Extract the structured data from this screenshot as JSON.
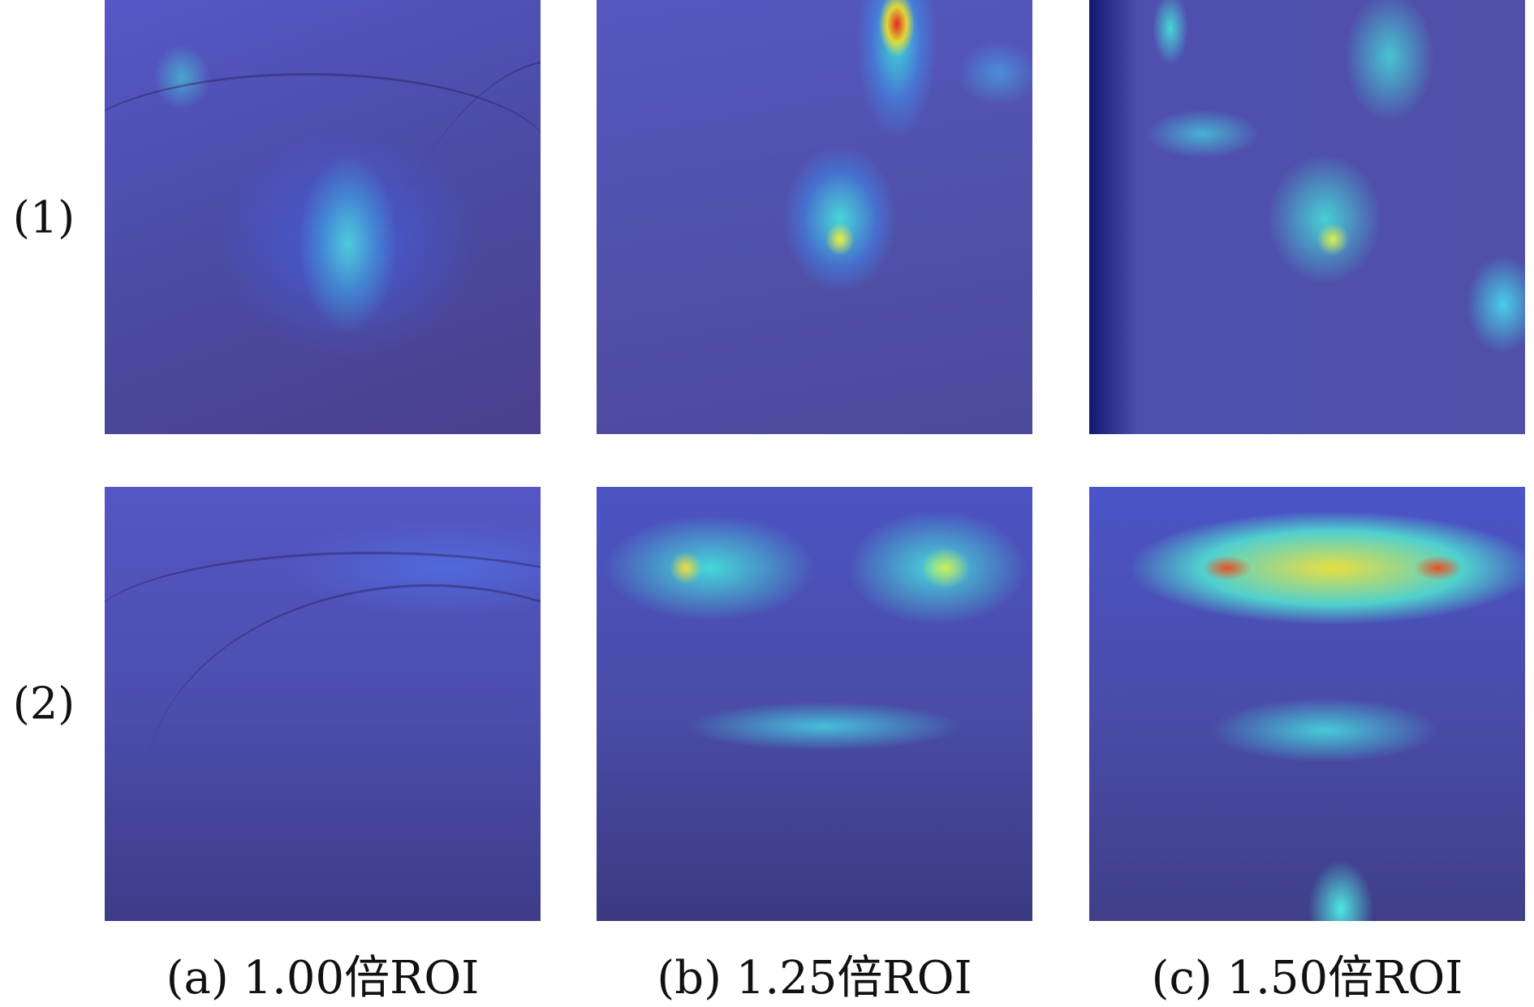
{
  "figure": {
    "rows": [
      {
        "label": "(1)"
      },
      {
        "label": "(2)"
      }
    ],
    "columns": [
      {
        "caption": "(a) 1.00倍ROI"
      },
      {
        "caption": "(b) 1.25倍ROI"
      },
      {
        "caption": "(c) 1.50倍ROI"
      }
    ],
    "content": "Grad-CAM style heatmaps overlaid on palm ROI images",
    "colormap": [
      "#2a2ad0",
      "#30e0e0",
      "#f0f020",
      "#e02020"
    ]
  }
}
